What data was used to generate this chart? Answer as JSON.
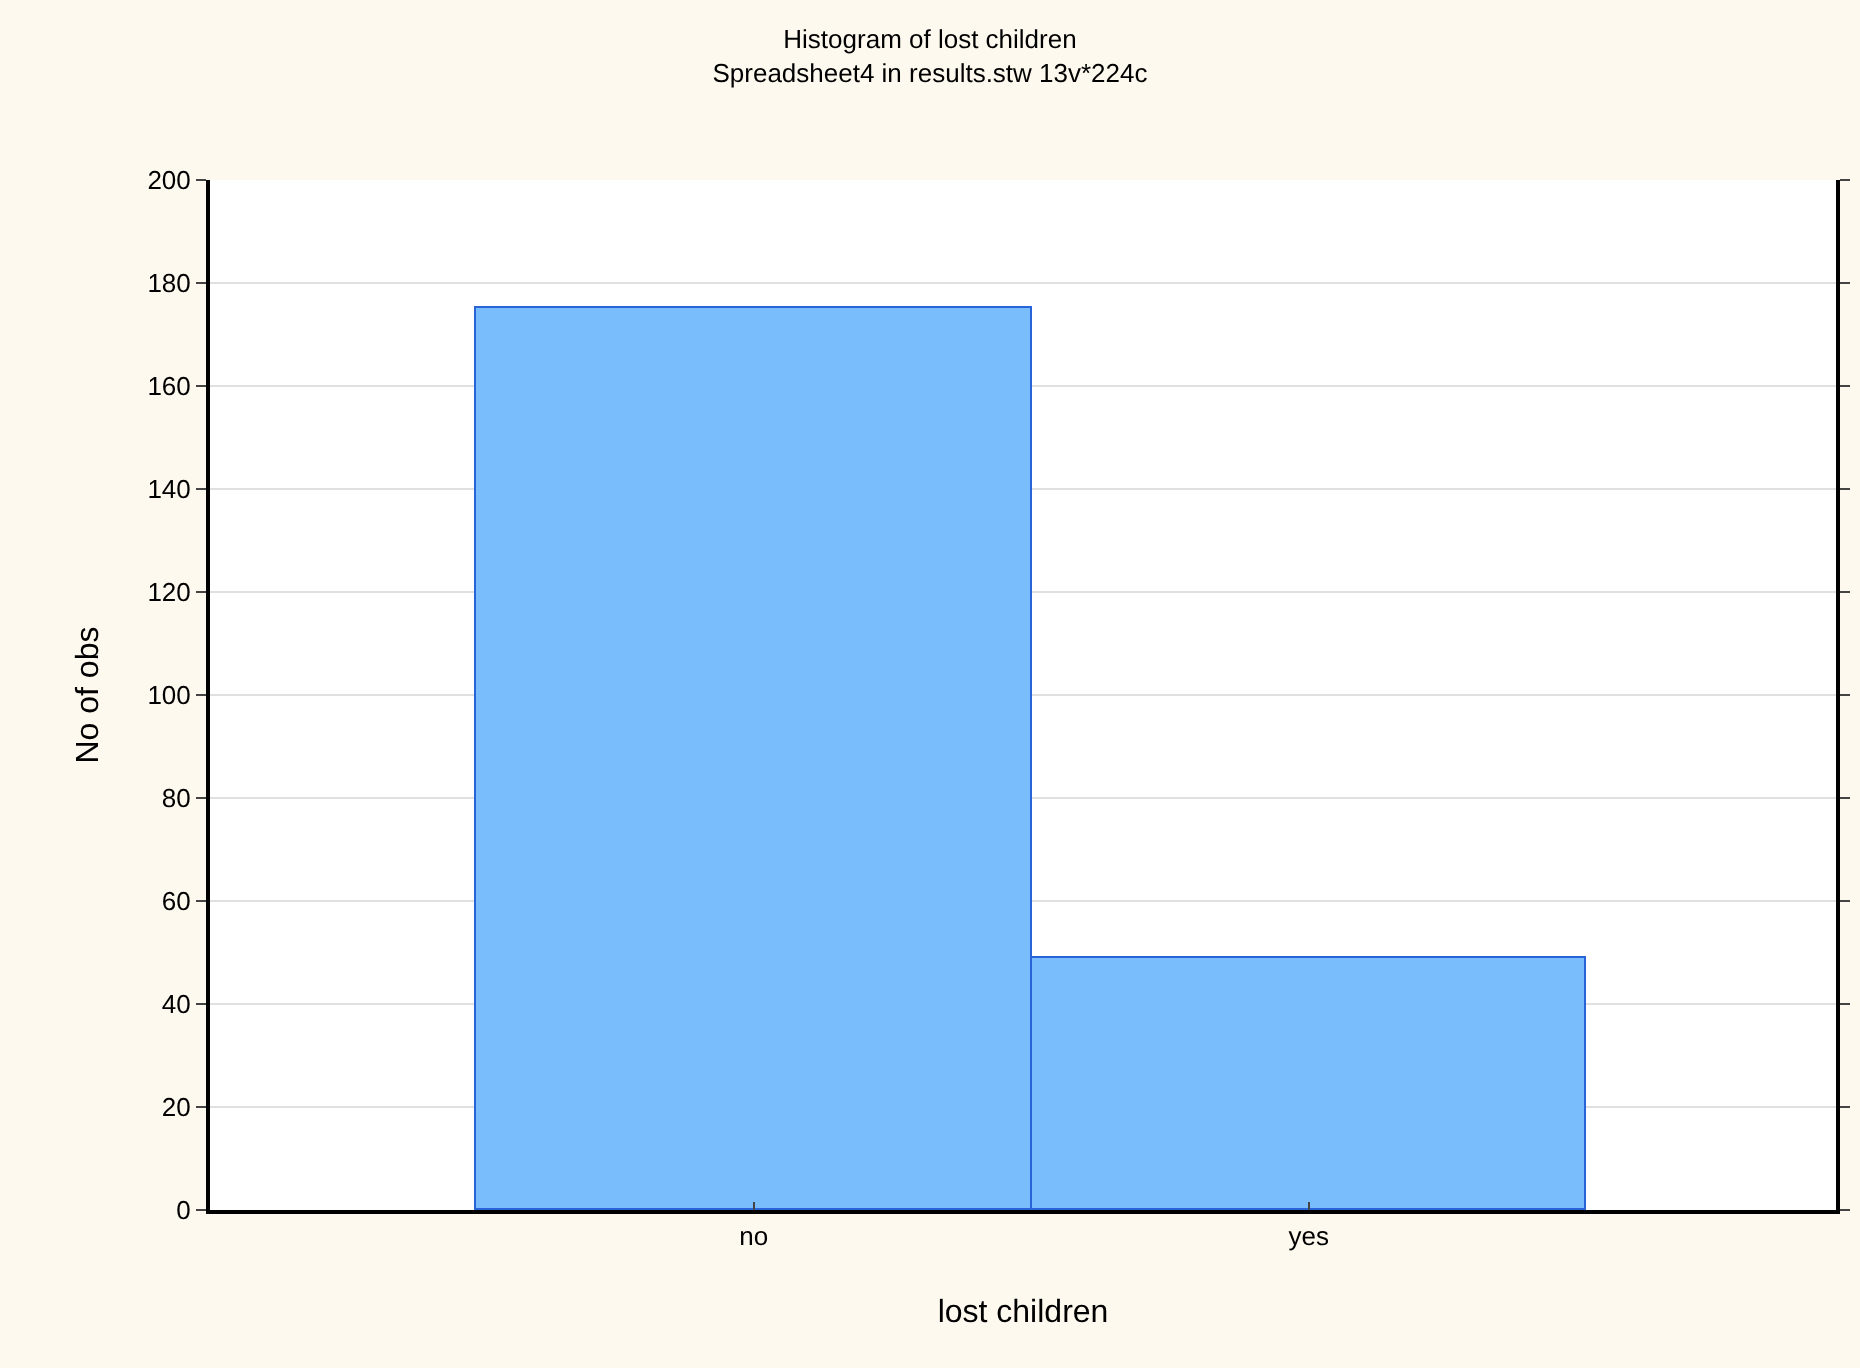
{
  "chart_data": {
    "type": "bar",
    "title": "Histogram of lost children",
    "subtitle": "Spreadsheet4 in results.stw 13v*224c",
    "xlabel": "lost children",
    "ylabel": "No of obs",
    "categories": [
      "no",
      "yes"
    ],
    "values": [
      175,
      49
    ],
    "color": "#79bdfc",
    "ylim": [
      0,
      200
    ],
    "yticks": [
      0,
      20,
      40,
      60,
      80,
      100,
      120,
      140,
      160,
      180,
      200
    ],
    "grid": "y"
  }
}
